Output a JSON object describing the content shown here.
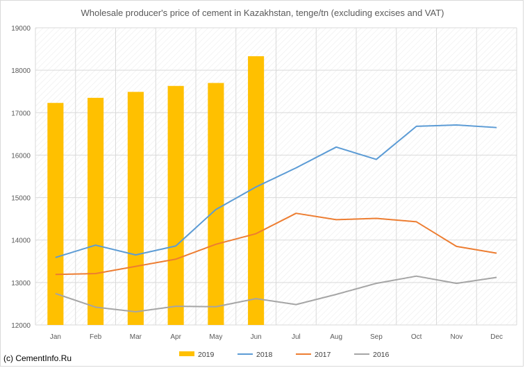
{
  "copyright": "(c) CementInfo.Ru",
  "chart_data": {
    "type": "bar",
    "title": "Wholesale producer's price of cement in Kazakhstan, tenge/tn (excluding excises and VAT)",
    "xlabel": "",
    "ylabel": "",
    "categories": [
      "Jan",
      "Feb",
      "Mar",
      "Apr",
      "May",
      "Jun",
      "Jul",
      "Aug",
      "Sep",
      "Oct",
      "Nov",
      "Dec"
    ],
    "ylim": [
      12000,
      19000
    ],
    "yticks": [
      12000,
      13000,
      14000,
      15000,
      16000,
      17000,
      18000,
      19000
    ],
    "grid": true,
    "legend_position": "bottom",
    "series": [
      {
        "name": "2019",
        "type": "bar",
        "color": "#FFC000",
        "values": [
          17230,
          17350,
          17490,
          17630,
          17700,
          18330,
          null,
          null,
          null,
          null,
          null,
          null
        ]
      },
      {
        "name": "2018",
        "type": "line",
        "color": "#5B9BD5",
        "values": [
          13590,
          13880,
          13650,
          13860,
          14720,
          15250,
          15700,
          16190,
          15900,
          16680,
          16710,
          16650
        ]
      },
      {
        "name": "2017",
        "type": "line",
        "color": "#ED7D31",
        "values": [
          13190,
          13210,
          13380,
          13550,
          13900,
          14150,
          14630,
          14480,
          14510,
          14430,
          13850,
          13690
        ]
      },
      {
        "name": "2016",
        "type": "line",
        "color": "#A5A5A5",
        "values": [
          12740,
          12420,
          12310,
          12440,
          12430,
          12620,
          12480,
          12720,
          12980,
          13150,
          12980,
          13120
        ]
      }
    ]
  }
}
